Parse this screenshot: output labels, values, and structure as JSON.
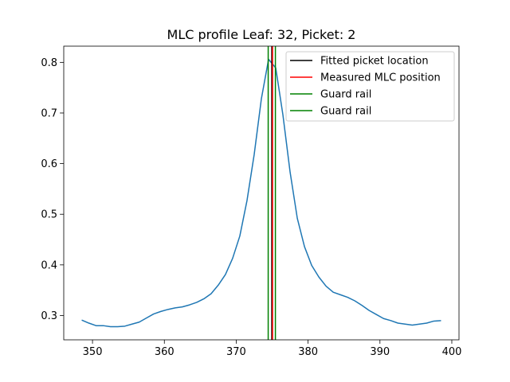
{
  "chart_data": {
    "type": "line",
    "title": "MLC profile Leaf: 32, Picket: 2",
    "xlabel": "",
    "ylabel": "",
    "xlim": [
      346,
      401
    ],
    "ylim": [
      0.252,
      0.832
    ],
    "xticks": [
      350,
      360,
      370,
      380,
      390,
      400
    ],
    "yticks": [
      0.3,
      0.4,
      0.5,
      0.6,
      0.7,
      0.8
    ],
    "xtick_labels": [
      "350",
      "360",
      "370",
      "380",
      "390",
      "400"
    ],
    "ytick_labels": [
      "0.3",
      "0.4",
      "0.5",
      "0.6",
      "0.7",
      "0.8"
    ],
    "grid": false,
    "legend_position": "top-right",
    "profile": {
      "color": "#1f77b4",
      "x": [
        348.5,
        349.5,
        350.5,
        351.5,
        352.5,
        353.5,
        354.5,
        355.5,
        356.5,
        357.5,
        358.5,
        359.5,
        360.5,
        361.5,
        362.5,
        363.5,
        364.5,
        365.5,
        366.5,
        367.5,
        368.5,
        369.5,
        370.5,
        371.5,
        372.5,
        373.5,
        374.5,
        375.5,
        376.5,
        377.5,
        378.5,
        379.5,
        380.5,
        381.5,
        382.5,
        383.5,
        384.5,
        385.5,
        386.5,
        387.5,
        388.5,
        389.5,
        390.5,
        391.5,
        392.5,
        393.5,
        394.5,
        395.5,
        396.5,
        397.5,
        398.5
      ],
      "y": [
        0.291,
        0.285,
        0.28,
        0.28,
        0.278,
        0.278,
        0.279,
        0.283,
        0.287,
        0.295,
        0.303,
        0.308,
        0.312,
        0.315,
        0.317,
        0.321,
        0.326,
        0.333,
        0.343,
        0.36,
        0.381,
        0.413,
        0.457,
        0.527,
        0.618,
        0.728,
        0.806,
        0.789,
        0.696,
        0.583,
        0.492,
        0.436,
        0.399,
        0.376,
        0.358,
        0.346,
        0.341,
        0.336,
        0.329,
        0.32,
        0.31,
        0.302,
        0.294,
        0.29,
        0.285,
        0.283,
        0.281,
        0.283,
        0.285,
        0.289,
        0.29
      ]
    },
    "vertical_lines": [
      {
        "label": "Fitted picket location",
        "x": 374.95,
        "color": "#000000"
      },
      {
        "label": "Measured MLC position",
        "x": 375.05,
        "color": "#ff0000"
      },
      {
        "label": "Guard rail",
        "x": 374.45,
        "color": "#008000"
      },
      {
        "label": "Guard rail",
        "x": 375.45,
        "color": "#008000"
      }
    ]
  }
}
